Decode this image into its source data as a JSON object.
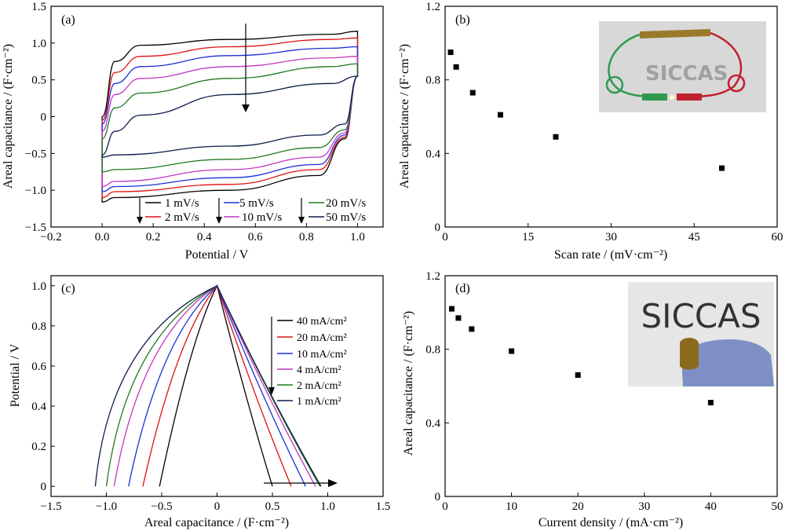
{
  "colors": {
    "1": "#000000",
    "2": "#e01010",
    "3": "#1a2fd8",
    "4": "#c235c2",
    "5": "#1f7a1f",
    "6": "#0d1b4a"
  },
  "chart_data": [
    {
      "panel": "(a)",
      "type": "line",
      "xlabel": "Potential / V",
      "ylabel": "Areal capacitance / (F·cm⁻²)",
      "xlim": [
        -0.2,
        1.1
      ],
      "ylim": [
        -1.5,
        1.5
      ],
      "xticks": [
        "−0.2",
        "0.0",
        "0.2",
        "0.4",
        "0.6",
        "0.8",
        "1.0"
      ],
      "yticks": [
        "−1.5",
        "−1.0",
        "−0.5",
        "0",
        "0.5",
        "1.0",
        "1.5"
      ],
      "legend": [
        "1 mV/s",
        "5 mV/s",
        "20 mV/s",
        "2 mV/s",
        "10 mV/s",
        "50 mV/s"
      ],
      "series": [
        {
          "name": "1 mV/s",
          "upper": [
            [
              0,
              0.0
            ],
            [
              0.05,
              0.75
            ],
            [
              0.15,
              0.97
            ],
            [
              0.5,
              1.05
            ],
            [
              0.9,
              1.12
            ],
            [
              1.0,
              1.16
            ]
          ],
          "lower": [
            [
              0,
              -1.16
            ],
            [
              0.05,
              -1.1
            ],
            [
              0.5,
              -1.0
            ],
            [
              0.85,
              -0.8
            ],
            [
              0.95,
              -0.3
            ],
            [
              1.0,
              0.55
            ]
          ]
        },
        {
          "name": "2 mV/s",
          "upper": [
            [
              0,
              -0.05
            ],
            [
              0.05,
              0.6
            ],
            [
              0.15,
              0.82
            ],
            [
              0.5,
              0.95
            ],
            [
              0.9,
              1.05
            ],
            [
              1.0,
              1.07
            ]
          ],
          "lower": [
            [
              0,
              -1.1
            ],
            [
              0.05,
              -1.02
            ],
            [
              0.5,
              -0.92
            ],
            [
              0.85,
              -0.72
            ],
            [
              0.95,
              -0.28
            ],
            [
              1.0,
              0.55
            ]
          ]
        },
        {
          "name": "5 mV/s",
          "upper": [
            [
              0,
              -0.1
            ],
            [
              0.05,
              0.45
            ],
            [
              0.15,
              0.68
            ],
            [
              0.5,
              0.83
            ],
            [
              0.9,
              0.93
            ],
            [
              1.0,
              0.95
            ]
          ],
          "lower": [
            [
              0,
              -1.02
            ],
            [
              0.05,
              -0.95
            ],
            [
              0.5,
              -0.83
            ],
            [
              0.85,
              -0.65
            ],
            [
              0.95,
              -0.25
            ],
            [
              1.0,
              0.55
            ]
          ]
        },
        {
          "name": "10 mV/s",
          "upper": [
            [
              0,
              -0.2
            ],
            [
              0.05,
              0.3
            ],
            [
              0.15,
              0.52
            ],
            [
              0.5,
              0.68
            ],
            [
              0.9,
              0.8
            ],
            [
              1.0,
              0.82
            ]
          ],
          "lower": [
            [
              0,
              -0.95
            ],
            [
              0.05,
              -0.88
            ],
            [
              0.5,
              -0.72
            ],
            [
              0.85,
              -0.55
            ],
            [
              0.95,
              -0.22
            ],
            [
              1.0,
              0.55
            ]
          ]
        },
        {
          "name": "20 mV/s",
          "upper": [
            [
              0,
              -0.3
            ],
            [
              0.05,
              0.12
            ],
            [
              0.15,
              0.32
            ],
            [
              0.5,
              0.52
            ],
            [
              0.9,
              0.68
            ],
            [
              1.0,
              0.72
            ]
          ],
          "lower": [
            [
              0,
              -0.75
            ],
            [
              0.05,
              -0.72
            ],
            [
              0.5,
              -0.58
            ],
            [
              0.85,
              -0.42
            ],
            [
              0.95,
              -0.18
            ],
            [
              1.0,
              0.55
            ]
          ]
        },
        {
          "name": "50 mV/s",
          "upper": [
            [
              0,
              -0.52
            ],
            [
              0.05,
              -0.2
            ],
            [
              0.15,
              0.02
            ],
            [
              0.5,
              0.3
            ],
            [
              0.9,
              0.45
            ],
            [
              1.0,
              0.55
            ]
          ],
          "lower": [
            [
              0,
              -0.55
            ],
            [
              0.05,
              -0.52
            ],
            [
              0.5,
              -0.4
            ],
            [
              0.85,
              -0.25
            ],
            [
              0.95,
              -0.1
            ],
            [
              1.0,
              0.55
            ]
          ]
        }
      ]
    },
    {
      "panel": "(b)",
      "type": "scatter",
      "xlabel": "Scan rate / (mV·cm⁻²)",
      "ylabel": "Areal capacitance / (F·cm⁻²)",
      "xlim": [
        0,
        60
      ],
      "ylim": [
        0,
        1.2
      ],
      "xticks": [
        "0",
        "15",
        "30",
        "45",
        "60"
      ],
      "yticks": [
        "0",
        "0.4",
        "0.8",
        "1.2"
      ],
      "x": [
        1,
        2,
        5,
        10,
        20,
        50
      ],
      "y": [
        0.95,
        0.87,
        0.73,
        0.61,
        0.49,
        0.32
      ],
      "inset_logo": "SICCAS"
    },
    {
      "panel": "(c)",
      "type": "line",
      "xlabel": "Areal capacitance / (F·cm⁻²)",
      "ylabel": "Potential / V",
      "xlim": [
        -1.5,
        1.5
      ],
      "ylim": [
        -0.05,
        1.05
      ],
      "xticks": [
        "−1.5",
        "−1.0",
        "−0.5",
        "0",
        "0.5",
        "1.0",
        "1.5"
      ],
      "yticks": [
        "0",
        "0.2",
        "0.4",
        "0.6",
        "0.8",
        "1.0"
      ],
      "legend": [
        "40 mA/cm²",
        "20 mA/cm²",
        "10 mA/cm²",
        "4 mA/cm²",
        "2 mA/cm²",
        "1 mA/cm²"
      ],
      "series": [
        {
          "name": "40 mA/cm²",
          "left": -0.52,
          "right": 0.5,
          "bow": 0.55
        },
        {
          "name": "20 mA/cm²",
          "left": -0.67,
          "right": 0.67,
          "bow": 0.45
        },
        {
          "name": "10 mA/cm²",
          "left": -0.8,
          "right": 0.8,
          "bow": 0.35
        },
        {
          "name": "4 mA/cm²",
          "left": -0.93,
          "right": 0.89,
          "bow": 0.25
        },
        {
          "name": "2 mA/cm²",
          "left": -1.0,
          "right": 0.93,
          "bow": 0.18
        },
        {
          "name": "1 mA/cm²",
          "left": -1.1,
          "right": 0.94,
          "bow": 0.12
        }
      ]
    },
    {
      "panel": "(d)",
      "type": "scatter",
      "xlabel": "Current density / (mA·cm⁻²)",
      "ylabel": "Areal capacitance / (F·cm⁻²)",
      "xlim": [
        0,
        50
      ],
      "ylim": [
        0,
        1.2
      ],
      "xticks": [
        "0",
        "10",
        "20",
        "30",
        "40",
        "50"
      ],
      "yticks": [
        "0",
        "0.4",
        "0.8",
        "1.2"
      ],
      "x": [
        1,
        2,
        4,
        10,
        20,
        40
      ],
      "y": [
        1.02,
        0.97,
        0.91,
        0.79,
        0.66,
        0.51
      ],
      "inset_logo": "SICCAS"
    }
  ]
}
